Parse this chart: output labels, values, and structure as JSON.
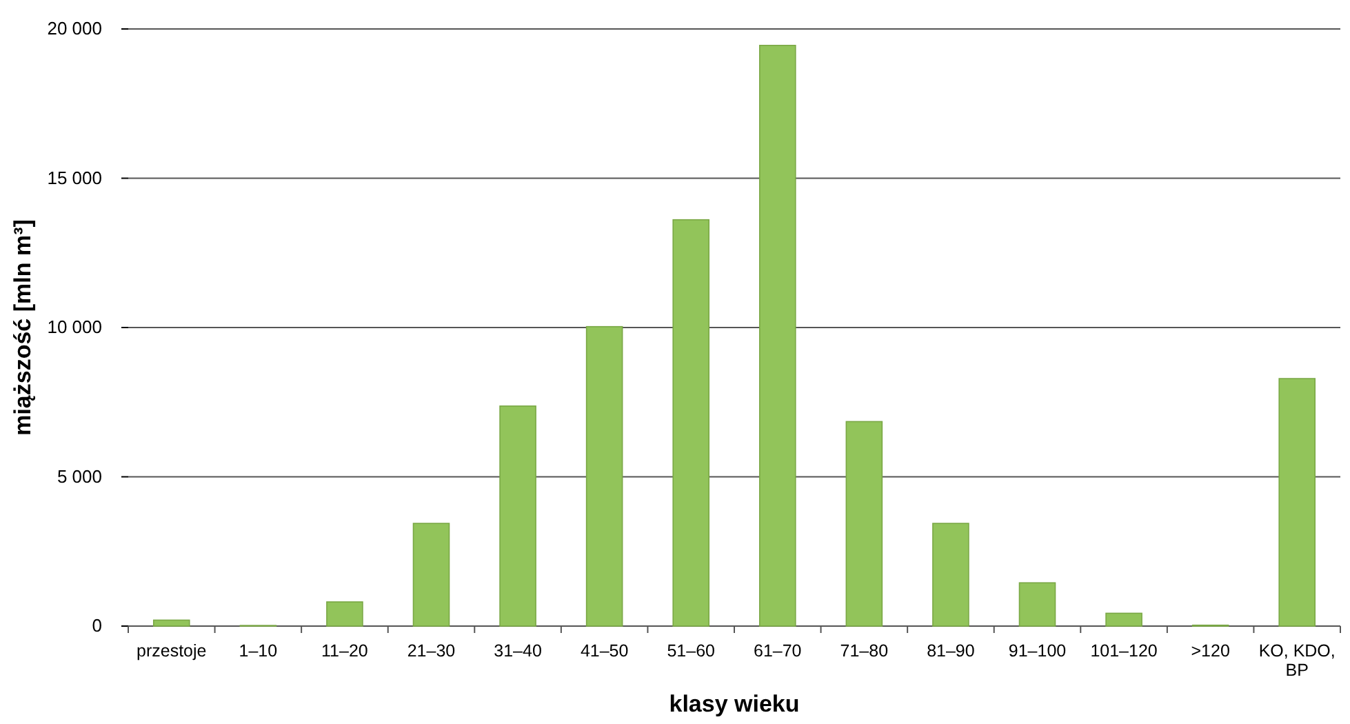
{
  "chart_data": {
    "type": "bar",
    "xlabel": "klasy wieku",
    "ylabel": "miąższość [mln m³]",
    "categories": [
      "przestoje",
      "1–10",
      "11–20",
      "21–30",
      "31–40",
      "41–50",
      "51–60",
      "61–70",
      "71–80",
      "81–90",
      "91–100",
      "101–120",
      ">120",
      "KO, KDO, BP"
    ],
    "values": [
      200,
      20,
      810,
      3440,
      7370,
      10030,
      13610,
      19450,
      6850,
      3440,
      1450,
      430,
      30,
      8290
    ],
    "color": "#92c45a",
    "ylim": [
      0,
      20000
    ],
    "yticks": [
      0,
      {
        "value": 5000,
        "label": "5 000"
      },
      {
        "value": 10000,
        "label": "10 000"
      },
      {
        "value": 15000,
        "label": "15 000"
      },
      {
        "value": 20000,
        "label": "20 000"
      }
    ],
    "grid": "y"
  }
}
